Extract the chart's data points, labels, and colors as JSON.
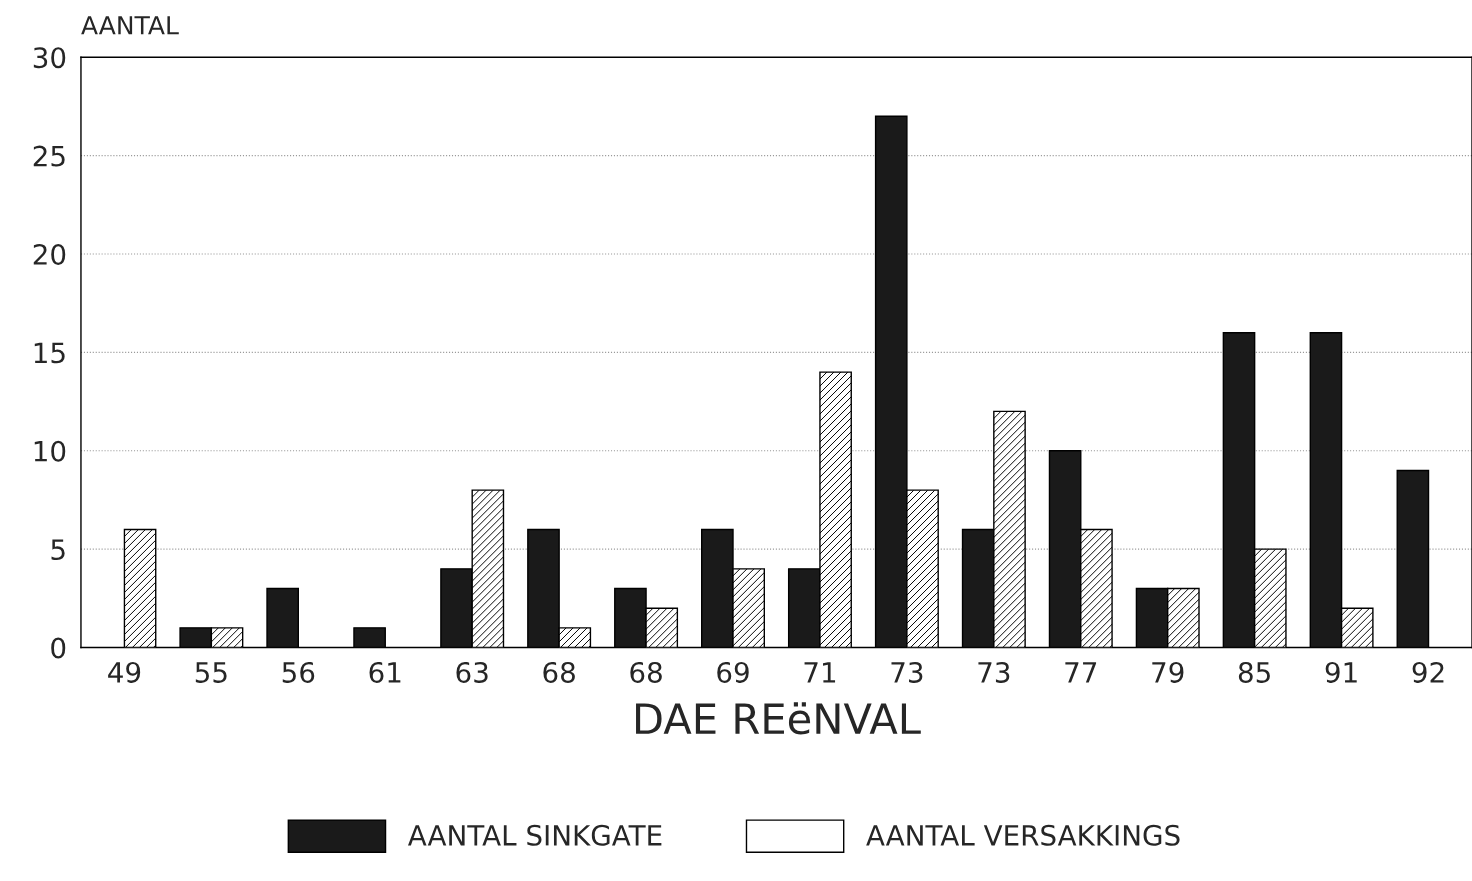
{
  "chart_data": {
    "type": "bar",
    "ylabel": "AANTAL",
    "xlabel": "DAE REëNVAL",
    "categories": [
      "49",
      "55",
      "56",
      "61",
      "63",
      "68",
      "68",
      "69",
      "71",
      "73",
      "73",
      "77",
      "79",
      "85",
      "91",
      "92"
    ],
    "series": [
      {
        "name": "AANTAL SINKGATE",
        "color": "#1a1a1a",
        "values": [
          null,
          1,
          3,
          1,
          4,
          6,
          3,
          6,
          4,
          27,
          6,
          10,
          3,
          16,
          16,
          9
        ]
      },
      {
        "name": "AANTAL VERSAKKINGS",
        "color": "#ffffff",
        "values": [
          6,
          1,
          null,
          null,
          8,
          1,
          2,
          4,
          14,
          8,
          12,
          6,
          3,
          5,
          2,
          null
        ]
      }
    ],
    "ylim": [
      0,
      30
    ],
    "yticks": [
      0,
      5,
      10,
      15,
      20,
      25,
      30
    ],
    "grid": "y",
    "legend": "bottom"
  }
}
